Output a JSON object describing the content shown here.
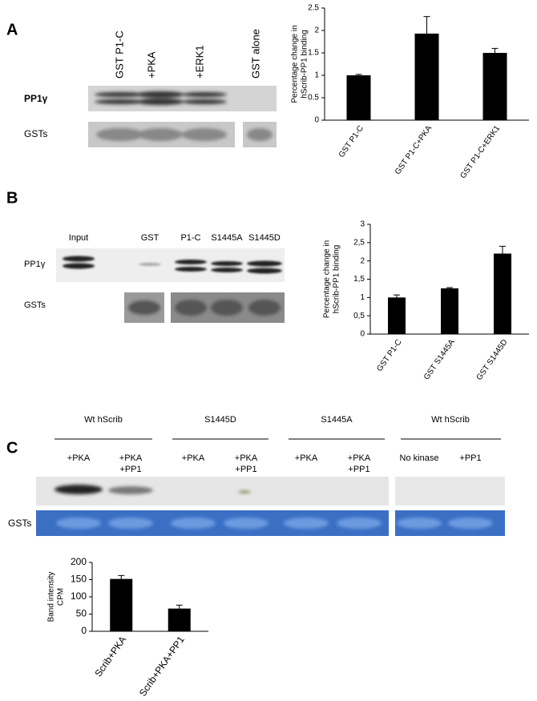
{
  "panel_a": {
    "label": "A",
    "lanes": [
      "GST P1-C",
      "+PKA",
      "+ERK1",
      "GST alone"
    ],
    "rows": [
      "PP1γ",
      "GSTs"
    ]
  },
  "panel_b": {
    "label": "B",
    "lanes": [
      "Input",
      "GST",
      "P1-C",
      "S1445A",
      "S1445D"
    ],
    "rows": [
      "PP1γ",
      "GSTs"
    ]
  },
  "panel_c": {
    "label": "C",
    "groups": [
      "Wt hScrib",
      "S1445D",
      "S1445A",
      "Wt hScrib"
    ],
    "lanes": [
      [
        "+PKA"
      ],
      [
        "+PKA",
        "+PP1"
      ],
      [
        "+PKA"
      ],
      [
        "+PKA",
        "+PP1"
      ],
      [
        "+PKA"
      ],
      [
        "+PKA",
        "+PP1"
      ],
      [
        "No kinase"
      ],
      [
        "+PP1"
      ]
    ],
    "rows": [
      "GSTs"
    ]
  },
  "chart_data": [
    {
      "type": "bar",
      "ylabel": [
        "Percentage change in",
        "hScrib-PP1 binding"
      ],
      "categories": [
        "GST P1-C",
        "GST P1-C+PKA",
        "GST P1-C+ERK1"
      ],
      "values": [
        1.0,
        1.93,
        1.5
      ],
      "errors": [
        0.02,
        0.38,
        0.1
      ],
      "color": "#000000",
      "ylim": [
        0,
        2.5
      ],
      "yticks": [
        0,
        0.5,
        1,
        1.5,
        2,
        2.5
      ]
    },
    {
      "type": "bar",
      "ylabel": [
        "Percentage change in",
        "hScrib-PP1 binding"
      ],
      "categories": [
        "GST P1-C",
        "GST S1445A",
        "GST S1445D"
      ],
      "values": [
        1.0,
        1.25,
        2.2
      ],
      "errors": [
        0.07,
        0.02,
        0.2
      ],
      "color": "#000000",
      "ylim": [
        0,
        3
      ],
      "yticks": [
        0,
        {
          "value": 0.5,
          "label": "0,5"
        },
        1,
        {
          "value": 1.5,
          "label": "1,5"
        },
        2,
        {
          "value": 2.5,
          "label": "2,5"
        },
        3
      ]
    },
    {
      "type": "bar",
      "ylabel": [
        "Band intensity",
        "CPM"
      ],
      "categories": [
        "Scrib+PKA",
        "Scrib+PKA+PP1"
      ],
      "values": [
        152,
        66
      ],
      "errors": [
        10,
        10
      ],
      "color": "#000000",
      "ylim": [
        0,
        200
      ],
      "yticks": [
        0,
        50,
        100,
        150,
        200
      ]
    }
  ]
}
